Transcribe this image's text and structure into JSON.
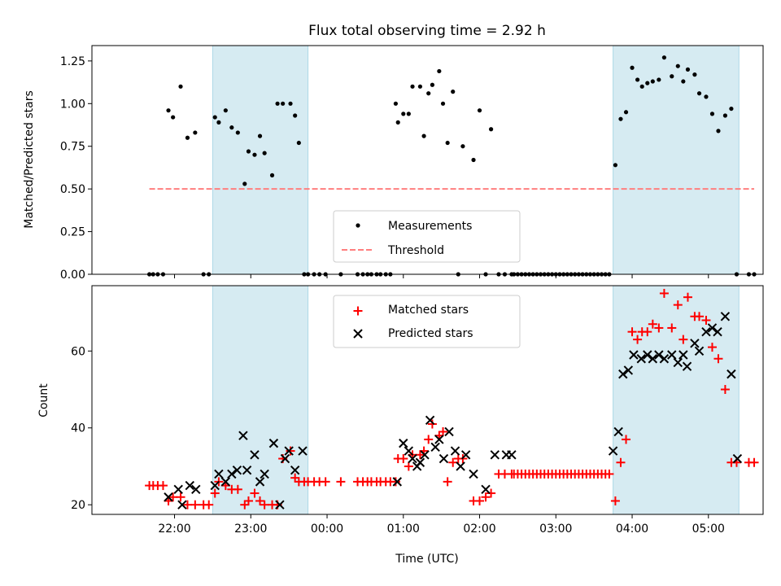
{
  "chart_data": [
    {
      "type": "scatter",
      "title": "Flux total observing time = 2.92 h",
      "ylabel": "Matched/Predicted stars",
      "xlim": [
        20.917,
        29.717
      ],
      "ylim": [
        0.0,
        1.34
      ],
      "yticks": [
        0.0,
        0.25,
        0.5,
        0.75,
        1.0,
        1.25
      ],
      "ytick_labels": [
        "0.00",
        "0.25",
        "0.50",
        "0.75",
        "1.00",
        "1.25"
      ],
      "legend_location": "lower center",
      "shaded_spans": [
        [
          22.5,
          23.75
        ],
        [
          27.75,
          29.4
        ]
      ],
      "series": [
        {
          "name": "Measurements",
          "marker": "dot",
          "color": "#000000",
          "x": [
            21.67,
            21.72,
            21.78,
            21.85,
            21.92,
            21.98,
            22.08,
            22.17,
            22.27,
            22.38,
            22.45,
            22.53,
            22.58,
            22.67,
            22.75,
            22.83,
            22.92,
            22.97,
            23.05,
            23.12,
            23.18,
            23.28,
            23.35,
            23.42,
            23.52,
            23.58,
            23.63,
            23.7,
            23.75,
            23.83,
            23.9,
            23.98,
            24.18,
            24.4,
            24.47,
            24.53,
            24.58,
            24.65,
            24.7,
            24.77,
            24.83,
            24.9,
            24.93,
            25.0,
            25.07,
            25.12,
            25.22,
            25.27,
            25.33,
            25.38,
            25.47,
            25.52,
            25.58,
            25.65,
            25.72,
            25.78,
            25.92,
            26.0,
            26.08,
            26.15,
            26.25,
            26.33,
            26.42,
            26.45,
            26.5,
            26.55,
            26.6,
            26.65,
            26.7,
            26.75,
            26.8,
            26.85,
            26.9,
            26.95,
            27.0,
            27.05,
            27.1,
            27.15,
            27.2,
            27.25,
            27.3,
            27.35,
            27.4,
            27.45,
            27.5,
            27.55,
            27.6,
            27.65,
            27.7,
            27.78,
            27.85,
            27.92,
            28.0,
            28.07,
            28.13,
            28.2,
            28.27,
            28.35,
            28.42,
            28.52,
            28.6,
            28.67,
            28.73,
            28.82,
            28.88,
            28.97,
            29.05,
            29.13,
            29.22,
            29.3,
            29.37,
            29.53,
            29.6
          ],
          "y": [
            0.0,
            0.0,
            0.0,
            0.0,
            0.96,
            0.92,
            1.1,
            0.8,
            0.83,
            0.0,
            0.0,
            0.92,
            0.89,
            0.96,
            0.86,
            0.83,
            0.53,
            0.72,
            0.7,
            0.81,
            0.71,
            0.58,
            1.0,
            1.0,
            1.0,
            0.93,
            0.77,
            0.0,
            0.0,
            0.0,
            0.0,
            0.0,
            0.0,
            0.0,
            0.0,
            0.0,
            0.0,
            0.0,
            0.0,
            0.0,
            0.0,
            1.0,
            0.89,
            0.94,
            0.94,
            1.1,
            1.1,
            0.81,
            1.06,
            1.11,
            1.19,
            1.0,
            0.77,
            1.07,
            0.0,
            0.75,
            0.67,
            0.96,
            0.0,
            0.85,
            0.0,
            0.0,
            0.0,
            0.0,
            0.0,
            0.0,
            0.0,
            0.0,
            0.0,
            0.0,
            0.0,
            0.0,
            0.0,
            0.0,
            0.0,
            0.0,
            0.0,
            0.0,
            0.0,
            0.0,
            0.0,
            0.0,
            0.0,
            0.0,
            0.0,
            0.0,
            0.0,
            0.0,
            0.0,
            0.64,
            0.91,
            0.95,
            1.21,
            1.14,
            1.1,
            1.12,
            1.13,
            1.14,
            1.27,
            1.16,
            1.22,
            1.13,
            1.2,
            1.17,
            1.06,
            1.04,
            0.94,
            0.84,
            0.93,
            0.97,
            0.0,
            0.0,
            0.0
          ]
        },
        {
          "name": "Threshold",
          "marker": "dashed-line",
          "color": "#ff7f7f",
          "x": [
            21.67,
            29.6
          ],
          "y": [
            0.5,
            0.5
          ]
        }
      ]
    },
    {
      "type": "scatter",
      "xlabel": "Time (UTC)",
      "ylabel": "Count",
      "xlim": [
        20.917,
        29.717
      ],
      "ylim": [
        17.5,
        77.0
      ],
      "xticks": [
        22,
        23,
        24,
        25,
        26,
        27,
        28,
        29
      ],
      "xtick_labels": [
        "22:00",
        "23:00",
        "00:00",
        "01:00",
        "02:00",
        "03:00",
        "04:00",
        "05:00"
      ],
      "yticks": [
        20,
        40,
        60
      ],
      "ytick_labels": [
        "20",
        "40",
        "60"
      ],
      "legend_location": "upper center",
      "shaded_spans": [
        [
          22.5,
          23.75
        ],
        [
          27.75,
          29.4
        ]
      ],
      "series": [
        {
          "name": "Matched stars",
          "marker": "plus",
          "color": "#ff0000",
          "x": [
            21.67,
            21.72,
            21.78,
            21.85,
            21.92,
            21.98,
            22.08,
            22.17,
            22.27,
            22.38,
            22.45,
            22.53,
            22.58,
            22.67,
            22.75,
            22.83,
            22.92,
            22.97,
            23.05,
            23.12,
            23.18,
            23.28,
            23.35,
            23.42,
            23.52,
            23.58,
            23.63,
            23.7,
            23.75,
            23.83,
            23.9,
            23.98,
            24.18,
            24.4,
            24.47,
            24.53,
            24.58,
            24.65,
            24.7,
            24.77,
            24.83,
            24.9,
            24.93,
            25.0,
            25.07,
            25.12,
            25.22,
            25.27,
            25.33,
            25.38,
            25.47,
            25.52,
            25.58,
            25.65,
            25.72,
            25.78,
            25.92,
            26.0,
            26.08,
            26.15,
            26.25,
            26.33,
            26.42,
            26.45,
            26.5,
            26.55,
            26.6,
            26.65,
            26.7,
            26.75,
            26.8,
            26.85,
            26.9,
            26.95,
            27.0,
            27.05,
            27.1,
            27.15,
            27.2,
            27.25,
            27.3,
            27.35,
            27.4,
            27.45,
            27.5,
            27.55,
            27.6,
            27.65,
            27.7,
            27.78,
            27.85,
            27.92,
            28.0,
            28.07,
            28.13,
            28.2,
            28.27,
            28.35,
            28.42,
            28.52,
            28.6,
            28.67,
            28.73,
            28.82,
            28.88,
            28.97,
            29.05,
            29.13,
            29.22,
            29.3,
            29.37,
            29.53,
            29.6
          ],
          "y": [
            25,
            25,
            25,
            25,
            21,
            22,
            22,
            20,
            20,
            20,
            20,
            23,
            26,
            25,
            24,
            24,
            20,
            21,
            23,
            21,
            20,
            20,
            20,
            32,
            34,
            27,
            26,
            26,
            26,
            26,
            26,
            26,
            26,
            26,
            26,
            26,
            26,
            26,
            26,
            26,
            26,
            26,
            32,
            32,
            30,
            33,
            33,
            34,
            37,
            41,
            38,
            39,
            26,
            31,
            32,
            32,
            21,
            21,
            22,
            23,
            28,
            28,
            28,
            28,
            28,
            28,
            28,
            28,
            28,
            28,
            28,
            28,
            28,
            28,
            28,
            28,
            28,
            28,
            28,
            28,
            28,
            28,
            28,
            28,
            28,
            28,
            28,
            28,
            28,
            21,
            31,
            37,
            65,
            63,
            65,
            65,
            67,
            66,
            75,
            66,
            72,
            63,
            74,
            69,
            69,
            68,
            61,
            58,
            50,
            31,
            31,
            31,
            31
          ]
        },
        {
          "name": "Predicted stars",
          "marker": "x",
          "color": "#000000",
          "x": [
            21.92,
            22.05,
            22.1,
            22.2,
            22.28,
            22.53,
            22.58,
            22.67,
            22.75,
            22.82,
            22.9,
            22.95,
            23.05,
            23.12,
            23.18,
            23.3,
            23.38,
            23.45,
            23.5,
            23.58,
            23.68,
            24.92,
            25.0,
            25.07,
            25.12,
            25.18,
            25.22,
            25.28,
            25.35,
            25.42,
            25.47,
            25.53,
            25.6,
            25.68,
            25.75,
            25.82,
            25.92,
            26.08,
            26.2,
            26.35,
            26.42,
            27.75,
            27.82,
            27.88,
            27.95,
            28.02,
            28.12,
            28.2,
            28.27,
            28.35,
            28.42,
            28.52,
            28.6,
            28.67,
            28.72,
            28.82,
            28.88,
            28.97,
            29.05,
            29.12,
            29.22,
            29.3,
            29.38
          ],
          "y": [
            22,
            24,
            20,
            25,
            24,
            25,
            28,
            26,
            28,
            29,
            38,
            29,
            33,
            26,
            28,
            36,
            20,
            32,
            34,
            29,
            34,
            26,
            36,
            34,
            32,
            30,
            31,
            33,
            42,
            35,
            37,
            32,
            39,
            34,
            30,
            33,
            28,
            24,
            33,
            33,
            33,
            34,
            39,
            54,
            55,
            59,
            58,
            59,
            58,
            59,
            58,
            59,
            57,
            59,
            56,
            62,
            60,
            65,
            66,
            65,
            69,
            54,
            32
          ]
        }
      ]
    }
  ]
}
